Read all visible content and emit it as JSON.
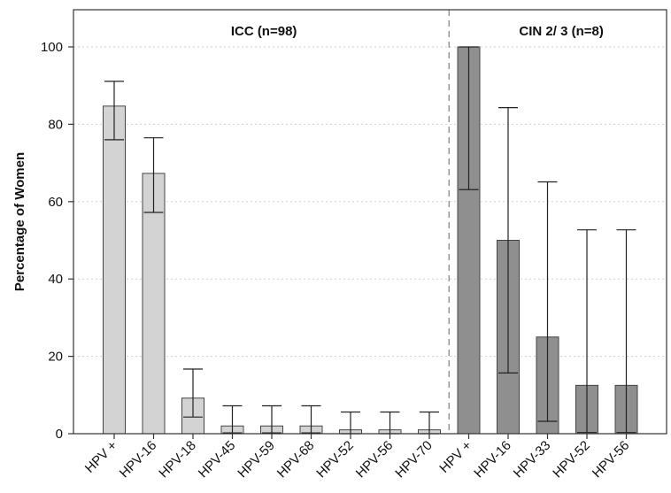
{
  "chart_data": {
    "type": "bar",
    "ylabel": "Percentage of Women",
    "ylim": [
      0,
      110
    ],
    "yticks": [
      0,
      20,
      40,
      60,
      80,
      100
    ],
    "grid": "horizontal dotted",
    "panels": [
      {
        "title": "ICC (n=98)",
        "color": "#d3d3d3",
        "categories": [
          "HPV +",
          "HPV-16",
          "HPV-18",
          "HPV-45",
          "HPV-59",
          "HPV-68",
          "HPV-52",
          "HPV-56",
          "HPV-70"
        ],
        "values": [
          84.7,
          67.3,
          9.2,
          2.0,
          2.0,
          2.0,
          1.0,
          1.0,
          1.0
        ],
        "ci_low": [
          76.0,
          57.2,
          4.3,
          0.2,
          0.2,
          0.2,
          0.0,
          0.0,
          0.0
        ],
        "ci_high": [
          91.1,
          76.5,
          16.7,
          7.2,
          7.2,
          7.2,
          5.6,
          5.6,
          5.6
        ]
      },
      {
        "title": "CIN 2/ 3 (n=8)",
        "color": "#8f8f8f",
        "categories": [
          "HPV +",
          "HPV-16",
          "HPV-33",
          "HPV-52",
          "HPV-56"
        ],
        "values": [
          100,
          50,
          25,
          12.5,
          12.5
        ],
        "ci_low": [
          63.1,
          15.7,
          3.2,
          0.3,
          0.3
        ],
        "ci_high": [
          100,
          84.3,
          65.1,
          52.7,
          52.7
        ]
      }
    ]
  }
}
